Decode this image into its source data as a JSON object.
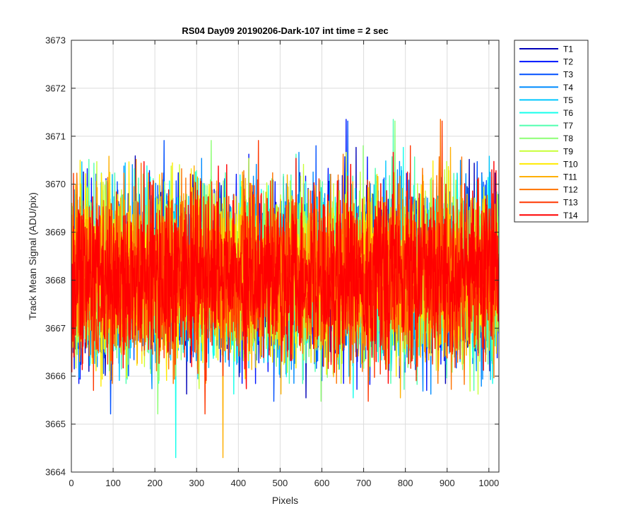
{
  "chart_data": {
    "type": "line",
    "title": "RS04 Day09 20190206-Dark-107 int time = 2 sec",
    "xlabel": "Pixels",
    "ylabel": "Track Mean Signal (ADU/pix)",
    "xlim": [
      0,
      1024
    ],
    "ylim": [
      3664,
      3673
    ],
    "xticks": [
      0,
      100,
      200,
      300,
      400,
      500,
      600,
      700,
      800,
      900,
      1000
    ],
    "yticks": [
      3664,
      3665,
      3666,
      3667,
      3668,
      3669,
      3670,
      3671,
      3672,
      3673
    ],
    "grid": true,
    "legend_position": "outside-top-right",
    "n_points": 1024,
    "series": [
      {
        "name": "T1",
        "color": "#0000b8",
        "mean": 3668.1,
        "std": 0.85
      },
      {
        "name": "T2",
        "color": "#0014ff",
        "mean": 3668.1,
        "std": 0.85
      },
      {
        "name": "T3",
        "color": "#0050ff",
        "mean": 3668.1,
        "std": 0.85
      },
      {
        "name": "T4",
        "color": "#008cff",
        "mean": 3668.1,
        "std": 0.85
      },
      {
        "name": "T5",
        "color": "#00c8ff",
        "mean": 3668.1,
        "std": 0.85
      },
      {
        "name": "T6",
        "color": "#14ffeb",
        "mean": 3668.1,
        "std": 0.85
      },
      {
        "name": "T7",
        "color": "#50ffaf",
        "mean": 3668.1,
        "std": 0.85
      },
      {
        "name": "T8",
        "color": "#8cff73",
        "mean": 3668.1,
        "std": 0.85
      },
      {
        "name": "T9",
        "color": "#c8ff37",
        "mean": 3668.1,
        "std": 0.85
      },
      {
        "name": "T10",
        "color": "#ffeb00",
        "mean": 3668.1,
        "std": 0.85
      },
      {
        "name": "T11",
        "color": "#ffaf00",
        "mean": 3668.1,
        "std": 0.85
      },
      {
        "name": "T12",
        "color": "#ff7300",
        "mean": 3668.1,
        "std": 0.85
      },
      {
        "name": "T13",
        "color": "#ff3700",
        "mean": 3668.1,
        "std": 0.85
      },
      {
        "name": "T14",
        "color": "#ff0000",
        "mean": 3668.1,
        "std": 0.85
      }
    ]
  }
}
